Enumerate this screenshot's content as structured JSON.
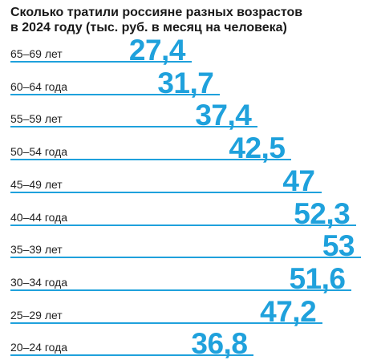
{
  "title_line1": "Сколько тратили россияне разных возрастов",
  "title_line2": "в 2024 году (тыс. руб. в месяц на человека)",
  "colors": {
    "accent": "#1fa1dc",
    "text": "#1a1a1a"
  },
  "chart_data": {
    "type": "bar",
    "title": "Сколько тратили россияне разных возрастов в 2024 году (тыс. руб. в месяц на человека)",
    "categories": [
      "65–69 лет",
      "60–64 года",
      "55–59 лет",
      "50–54 года",
      "45–49 лет",
      "40–44 года",
      "35–39 лет",
      "30–34 года",
      "25–29 лет",
      "20–24 года"
    ],
    "values": [
      27.4,
      31.7,
      37.4,
      42.5,
      47,
      52.3,
      53,
      51.6,
      47.2,
      36.8
    ],
    "value_labels": [
      "27,4",
      "31,7",
      "37,4",
      "42,5",
      "47",
      "52,3",
      "53",
      "51,6",
      "47,2",
      "36,8"
    ],
    "orientation": "horizontal",
    "xlim": [
      0,
      53
    ]
  }
}
